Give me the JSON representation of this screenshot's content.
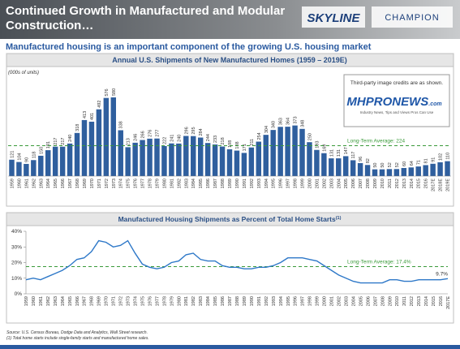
{
  "header": {
    "title_lines": [
      "Continued Growth in Manufactured and Modular",
      "Construction…"
    ],
    "logos": [
      "SKYLINE",
      "CHAMPION"
    ]
  },
  "subtitle": "Manufactured housing is an important component of the growing U.S. housing market",
  "credit": {
    "text": "Third-party image credits are as shown.",
    "logo": "MHPRONEWS",
    "logo_suffix": ".com",
    "tagline": "Industry News, Tips and Views Pros Can Use"
  },
  "chart_data": [
    {
      "type": "bar",
      "title": "Annual U.S. Shipments of New Manufactured Homes (1959 – 2019E)",
      "unit_note": "(000s of units)",
      "categories": [
        "1959",
        "1960",
        "1961",
        "1962",
        "1963",
        "1964",
        "1965",
        "1966",
        "1967",
        "1968",
        "1969",
        "1970",
        "1971",
        "1972",
        "1973",
        "1974",
        "1975",
        "1976",
        "1977",
        "1978",
        "1979",
        "1980",
        "1981",
        "1982",
        "1983",
        "1984",
        "1985",
        "1986",
        "1987",
        "1988",
        "1989",
        "1990",
        "1991",
        "1992",
        "1993",
        "1994",
        "1995",
        "1996",
        "1997",
        "1998",
        "1999",
        "2000",
        "2001",
        "2002",
        "2003",
        "2004",
        "2005",
        "2006",
        "2007",
        "2008",
        "2009",
        "2010",
        "2011",
        "2012",
        "2013",
        "2014",
        "2015",
        "2016",
        "2017E",
        "2018E",
        "2019E"
      ],
      "values": [
        121,
        104,
        90,
        118,
        150,
        191,
        217,
        217,
        240,
        318,
        413,
        401,
        492,
        576,
        580,
        338,
        213,
        246,
        266,
        276,
        277,
        222,
        241,
        240,
        296,
        295,
        284,
        244,
        233,
        218,
        198,
        188,
        171,
        211,
        254,
        304,
        340,
        363,
        364,
        373,
        348,
        250,
        193,
        169,
        131,
        131,
        147,
        117,
        96,
        82,
        50,
        50,
        52,
        52,
        60,
        64,
        71,
        81,
        91,
        102,
        110
      ],
      "color": "#2f5f9e",
      "average": {
        "value": 224,
        "label": "Long-Term Average: 224"
      },
      "average_color": "#3a9a3a"
    },
    {
      "type": "line",
      "title": "Manufactured Housing Shipments as Percent of Total Home Starts",
      "title_note": "(1)",
      "categories": [
        "1959",
        "1960",
        "1961",
        "1962",
        "1963",
        "1964",
        "1965",
        "1966",
        "1967",
        "1968",
        "1969",
        "1970",
        "1971",
        "1972",
        "1973",
        "1974",
        "1975",
        "1976",
        "1977",
        "1978",
        "1979",
        "1980",
        "1981",
        "1982",
        "1983",
        "1984",
        "1985",
        "1986",
        "1987",
        "1988",
        "1989",
        "1990",
        "1991",
        "1992",
        "1993",
        "1994",
        "1995",
        "1996",
        "1997",
        "1998",
        "1999",
        "2000",
        "2001",
        "2002",
        "2003",
        "2004",
        "2005",
        "2006",
        "2007",
        "2008",
        "2009",
        "2010",
        "2011",
        "2012",
        "2013",
        "2014",
        "2015",
        "2016",
        "2017E"
      ],
      "series": [
        {
          "color": "#2e78c8",
          "values": [
            9,
            10,
            9,
            11,
            13,
            15,
            18,
            22,
            23,
            27,
            34,
            33,
            30,
            31,
            34,
            26,
            19,
            17,
            16,
            17,
            20,
            21,
            25,
            26,
            22,
            21,
            21,
            18,
            17,
            17,
            16,
            16,
            17,
            17,
            18,
            20,
            23,
            23,
            23,
            22,
            21,
            18,
            15,
            12,
            10,
            8,
            7,
            7,
            7,
            7,
            9,
            9,
            8,
            8,
            9,
            9,
            9,
            9,
            9.7
          ],
          "value_labels": [
            null,
            null,
            null,
            null,
            null,
            null,
            null,
            null,
            null,
            null,
            null,
            null,
            null,
            null,
            null,
            null,
            null,
            null,
            null,
            null,
            null,
            null,
            null,
            null,
            null,
            null,
            null,
            null,
            null,
            null,
            null,
            null,
            null,
            null,
            null,
            null,
            null,
            null,
            null,
            null,
            null,
            null,
            null,
            null,
            null,
            null,
            null,
            null,
            null,
            null,
            null,
            null,
            null,
            null,
            null,
            null,
            null,
            null,
            "9.7%"
          ]
        }
      ],
      "ylim": [
        0,
        40
      ],
      "yticks": [
        {
          "value": 0,
          "label": "0%"
        },
        {
          "value": 10,
          "label": "10%"
        },
        {
          "value": 20,
          "label": "20%"
        },
        {
          "value": 30,
          "label": "30%"
        },
        {
          "value": 40,
          "label": "40%"
        }
      ],
      "grid": false,
      "average": {
        "value": 17.4,
        "label": "Long-Term Average: 17.4%"
      },
      "average_color": "#3a9a3a"
    }
  ],
  "footnotes": [
    "Source: U.S. Census Bureau, Dodge Data and Analytics, Wall Street research.",
    "(1) Total home starts include single-family starts and manufactured home sales."
  ]
}
